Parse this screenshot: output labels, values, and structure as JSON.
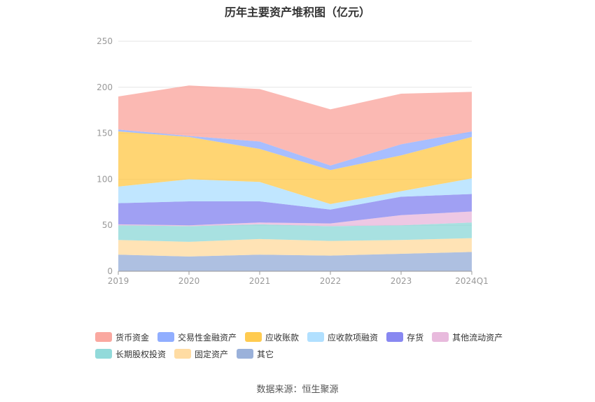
{
  "chart_data": {
    "type": "area",
    "stacked": true,
    "title": "历年主要资产堆积图（亿元）",
    "categories": [
      "2019",
      "2020",
      "2021",
      "2022",
      "2023",
      "2024Q1"
    ],
    "ylim": [
      0,
      250
    ],
    "yticks": [
      "0",
      "50",
      "100",
      "150",
      "200",
      "250"
    ],
    "grid": true,
    "legend_position": "bottom",
    "series": [
      {
        "name": "其它",
        "color": "#8fa8d6",
        "values": [
          18,
          16,
          18,
          17,
          19,
          21
        ]
      },
      {
        "name": "固定资产",
        "color": "#ffd899",
        "values": [
          16,
          16,
          17,
          16,
          15,
          15
        ]
      },
      {
        "name": "长期股权投资",
        "color": "#86d6d6",
        "values": [
          16,
          17,
          16,
          16,
          16,
          17
        ]
      },
      {
        "name": "其他流动资产",
        "color": "#e6b3d9",
        "values": [
          1,
          1,
          2,
          3,
          11,
          12
        ]
      },
      {
        "name": "存货",
        "color": "#7b7bef",
        "values": [
          23,
          26,
          23,
          15,
          20,
          19
        ]
      },
      {
        "name": "应收款项融资",
        "color": "#a8ddff",
        "values": [
          18,
          24,
          21,
          6,
          6,
          17
        ]
      },
      {
        "name": "应收账款",
        "color": "#ffc53d",
        "values": [
          60,
          46,
          36,
          37,
          39,
          45
        ]
      },
      {
        "name": "交易性金融资产",
        "color": "#85a5ff",
        "values": [
          2,
          1,
          8,
          5,
          12,
          6
        ]
      },
      {
        "name": "货币资金",
        "color": "#f99e96",
        "values": [
          36,
          55,
          57,
          61,
          55,
          43
        ]
      }
    ]
  },
  "legend_order": [
    "货币资金",
    "交易性金融资产",
    "应收账款",
    "应收款项融资",
    "存货",
    "其他流动资产",
    "长期股权投资",
    "固定资产",
    "其它"
  ],
  "source": "数据来源：恒生聚源"
}
